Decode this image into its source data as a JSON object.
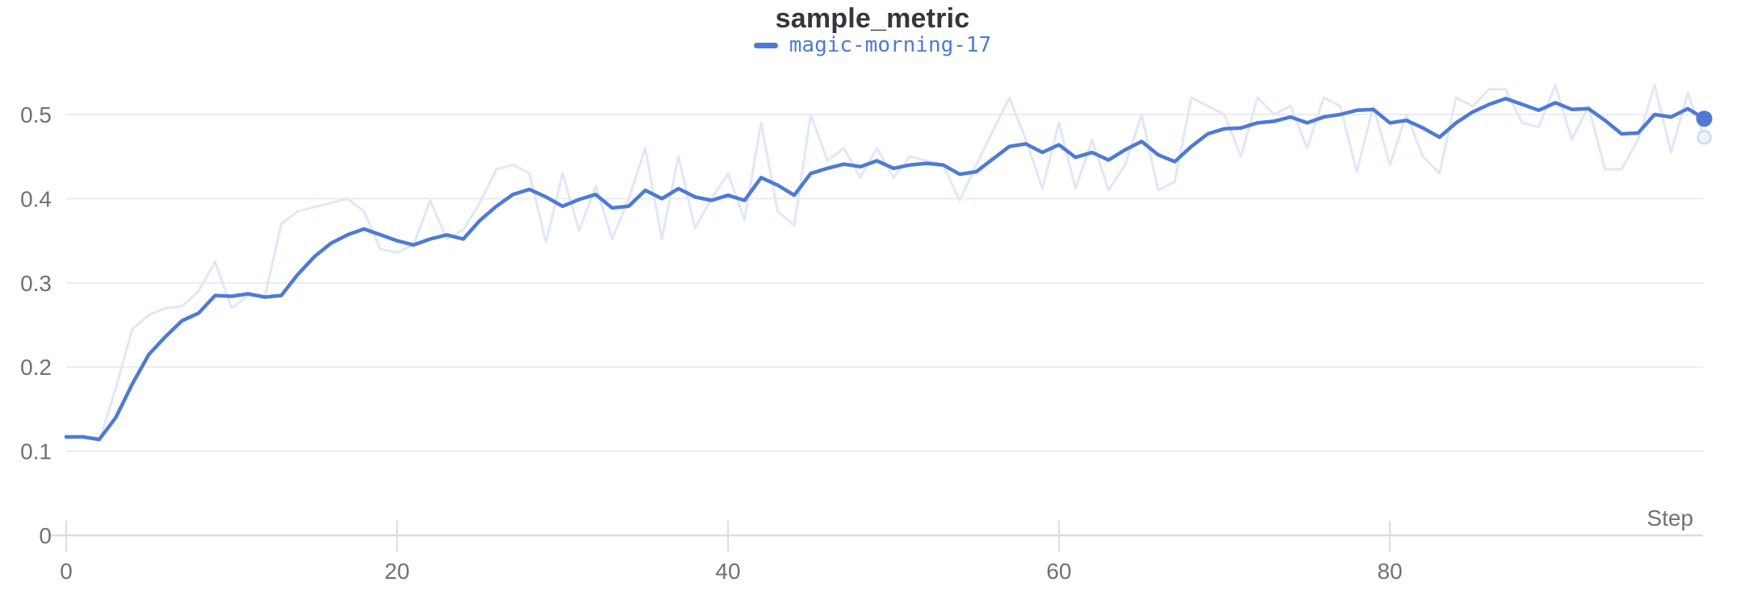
{
  "header": {
    "title": "sample_metric"
  },
  "legend": {
    "run_label": "magic-morning-17"
  },
  "axes": {
    "x_label": "Step",
    "x_ticks": [
      0,
      20,
      40,
      60,
      80
    ],
    "y_ticks": [
      0,
      0.1,
      0.2,
      0.3,
      0.4,
      0.5
    ]
  },
  "colors": {
    "accent": "#4E7AD5",
    "raw_line": "#DFE7F8",
    "raw_dot_fill": "#EDF2FB",
    "raw_dot_stroke": "#CCD9F3",
    "grid": "#ECECEF",
    "axis": "#DCDCE2",
    "tick_text": "#70707B",
    "title_text": "#33373B"
  },
  "chart_data": {
    "type": "line",
    "title": "sample_metric",
    "xlabel": "Step",
    "ylabel": "",
    "xlim": [
      0,
      99
    ],
    "ylim": [
      0,
      0.55
    ],
    "grid": "horizontal",
    "legend_position": "top-center",
    "legend_entries": [
      "magic-morning-17"
    ],
    "x": [
      0,
      1,
      2,
      3,
      4,
      5,
      6,
      7,
      8,
      9,
      10,
      11,
      12,
      13,
      14,
      15,
      16,
      17,
      18,
      19,
      20,
      21,
      22,
      23,
      24,
      25,
      26,
      27,
      28,
      29,
      30,
      31,
      32,
      33,
      34,
      35,
      36,
      37,
      38,
      39,
      40,
      41,
      42,
      43,
      44,
      45,
      46,
      47,
      48,
      49,
      50,
      51,
      52,
      53,
      54,
      55,
      56,
      57,
      58,
      59,
      60,
      61,
      62,
      63,
      64,
      65,
      66,
      67,
      68,
      69,
      70,
      71,
      72,
      73,
      74,
      75,
      76,
      77,
      78,
      79,
      80,
      81,
      82,
      83,
      84,
      85,
      86,
      87,
      88,
      89,
      90,
      91,
      92,
      93,
      94,
      95,
      96,
      97,
      98,
      99
    ],
    "series": [
      {
        "name": "magic-morning-17 (raw)",
        "role": "raw",
        "values": [
          0.115,
          0.118,
          0.112,
          0.175,
          0.245,
          0.262,
          0.27,
          0.272,
          0.29,
          0.325,
          0.27,
          0.285,
          0.283,
          0.37,
          0.385,
          0.39,
          0.395,
          0.4,
          0.385,
          0.34,
          0.336,
          0.345,
          0.398,
          0.352,
          0.363,
          0.395,
          0.435,
          0.44,
          0.43,
          0.348,
          0.43,
          0.362,
          0.415,
          0.352,
          0.4,
          0.46,
          0.352,
          0.45,
          0.365,
          0.4,
          0.43,
          0.375,
          0.49,
          0.385,
          0.368,
          0.5,
          0.445,
          0.46,
          0.425,
          0.46,
          0.425,
          0.45,
          0.445,
          0.44,
          0.398,
          0.44,
          0.48,
          0.52,
          0.47,
          0.412,
          0.49,
          0.412,
          0.47,
          0.41,
          0.44,
          0.5,
          0.41,
          0.42,
          0.52,
          0.51,
          0.5,
          0.45,
          0.52,
          0.5,
          0.51,
          0.46,
          0.52,
          0.51,
          0.432,
          0.51,
          0.44,
          0.5,
          0.45,
          0.43,
          0.52,
          0.51,
          0.53,
          0.53,
          0.49,
          0.485,
          0.535,
          0.47,
          0.51,
          0.435,
          0.435,
          0.47,
          0.535,
          0.455,
          0.525,
          0.473
        ]
      },
      {
        "name": "magic-morning-17 (smoothed)",
        "role": "smoothed",
        "values": [
          0.117,
          0.117,
          0.114,
          0.14,
          0.18,
          0.215,
          0.236,
          0.255,
          0.264,
          0.285,
          0.284,
          0.287,
          0.283,
          0.285,
          0.31,
          0.331,
          0.347,
          0.357,
          0.364,
          0.357,
          0.35,
          0.345,
          0.352,
          0.357,
          0.352,
          0.374,
          0.391,
          0.405,
          0.411,
          0.402,
          0.391,
          0.399,
          0.405,
          0.389,
          0.391,
          0.41,
          0.4,
          0.412,
          0.402,
          0.398,
          0.404,
          0.398,
          0.425,
          0.416,
          0.404,
          0.43,
          0.436,
          0.441,
          0.438,
          0.445,
          0.436,
          0.44,
          0.442,
          0.44,
          0.429,
          0.432,
          0.447,
          0.462,
          0.465,
          0.455,
          0.464,
          0.449,
          0.455,
          0.446,
          0.458,
          0.468,
          0.452,
          0.444,
          0.462,
          0.477,
          0.483,
          0.484,
          0.49,
          0.492,
          0.497,
          0.49,
          0.497,
          0.5,
          0.505,
          0.506,
          0.49,
          0.493,
          0.484,
          0.473,
          0.49,
          0.503,
          0.512,
          0.519,
          0.512,
          0.505,
          0.514,
          0.506,
          0.507,
          0.493,
          0.477,
          0.478,
          0.5,
          0.497,
          0.507,
          0.495
        ]
      }
    ]
  }
}
